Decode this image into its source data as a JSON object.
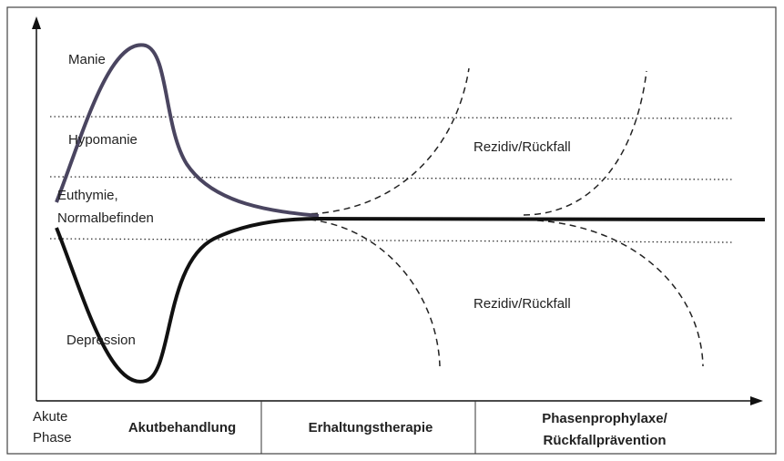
{
  "zones": [
    "Manie",
    "Hypomanie",
    "Euthymie,",
    "Normalbefinden",
    "Depression"
  ],
  "relapse_labels": [
    "Rezidiv/Rückfall",
    "Rezidiv/Rückfall"
  ],
  "phases": {
    "acute": [
      "Akute",
      "Phase"
    ],
    "treatment": [
      "Akutbehandlung",
      "Erhaltungstherapie",
      "Phasenprophylaxe/",
      "Rückfallprävention"
    ]
  }
}
